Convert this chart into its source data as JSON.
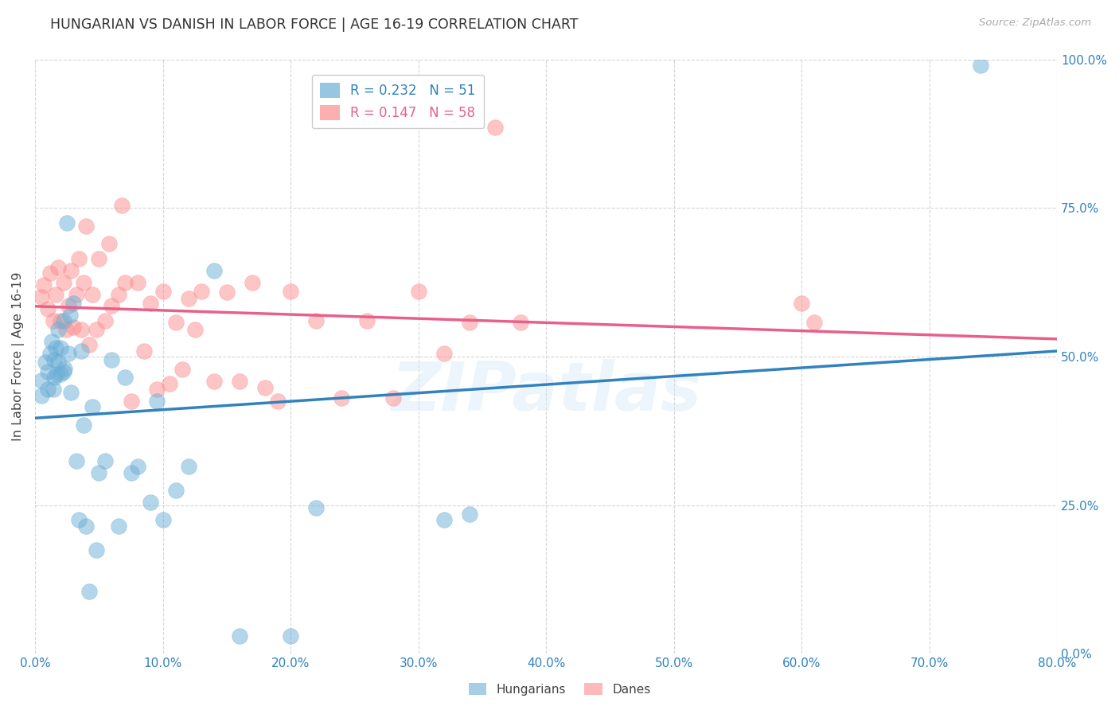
{
  "title": "HUNGARIAN VS DANISH IN LABOR FORCE | AGE 16-19 CORRELATION CHART",
  "source": "Source: ZipAtlas.com",
  "ylabel_text": "In Labor Force | Age 16-19",
  "xlim": [
    0.0,
    0.8
  ],
  "ylim": [
    0.0,
    1.0
  ],
  "watermark": "ZIPatlas",
  "blue_color": "#6baed6",
  "pink_color": "#fc8d8d",
  "blue_line_color": "#3182bd",
  "pink_line_color": "#e8608a",
  "hun_R": "0.232",
  "hun_N": "51",
  "dan_R": "0.147",
  "dan_N": "58",
  "hungarian_x": [
    0.005,
    0.005,
    0.008,
    0.01,
    0.01,
    0.012,
    0.013,
    0.014,
    0.015,
    0.015,
    0.016,
    0.017,
    0.018,
    0.018,
    0.02,
    0.02,
    0.022,
    0.022,
    0.023,
    0.025,
    0.026,
    0.027,
    0.028,
    0.03,
    0.032,
    0.034,
    0.036,
    0.038,
    0.04,
    0.042,
    0.045,
    0.048,
    0.05,
    0.055,
    0.06,
    0.065,
    0.07,
    0.075,
    0.08,
    0.09,
    0.095,
    0.1,
    0.11,
    0.12,
    0.14,
    0.16,
    0.2,
    0.22,
    0.32,
    0.34,
    0.74
  ],
  "hungarian_y": [
    0.435,
    0.46,
    0.49,
    0.445,
    0.475,
    0.505,
    0.525,
    0.445,
    0.465,
    0.495,
    0.515,
    0.47,
    0.49,
    0.545,
    0.47,
    0.515,
    0.475,
    0.56,
    0.48,
    0.725,
    0.505,
    0.57,
    0.44,
    0.59,
    0.325,
    0.225,
    0.51,
    0.385,
    0.215,
    0.105,
    0.415,
    0.175,
    0.305,
    0.325,
    0.495,
    0.215,
    0.465,
    0.305,
    0.315,
    0.255,
    0.425,
    0.225,
    0.275,
    0.315,
    0.645,
    0.03,
    0.03,
    0.245,
    0.225,
    0.235,
    0.99
  ],
  "danish_x": [
    0.005,
    0.007,
    0.01,
    0.012,
    0.014,
    0.016,
    0.018,
    0.02,
    0.022,
    0.024,
    0.026,
    0.028,
    0.03,
    0.032,
    0.034,
    0.036,
    0.038,
    0.04,
    0.042,
    0.045,
    0.048,
    0.05,
    0.055,
    0.058,
    0.06,
    0.065,
    0.068,
    0.07,
    0.075,
    0.08,
    0.085,
    0.09,
    0.095,
    0.1,
    0.105,
    0.11,
    0.115,
    0.12,
    0.125,
    0.13,
    0.14,
    0.15,
    0.16,
    0.17,
    0.18,
    0.19,
    0.2,
    0.22,
    0.24,
    0.26,
    0.28,
    0.3,
    0.32,
    0.34,
    0.36,
    0.38,
    0.6,
    0.61
  ],
  "danish_y": [
    0.6,
    0.62,
    0.58,
    0.64,
    0.56,
    0.605,
    0.65,
    0.56,
    0.625,
    0.545,
    0.585,
    0.645,
    0.55,
    0.605,
    0.665,
    0.545,
    0.625,
    0.72,
    0.52,
    0.605,
    0.545,
    0.665,
    0.56,
    0.69,
    0.585,
    0.605,
    0.755,
    0.625,
    0.425,
    0.625,
    0.51,
    0.59,
    0.445,
    0.61,
    0.455,
    0.558,
    0.478,
    0.598,
    0.545,
    0.61,
    0.458,
    0.608,
    0.458,
    0.625,
    0.448,
    0.425,
    0.61,
    0.56,
    0.43,
    0.56,
    0.43,
    0.61,
    0.505,
    0.558,
    0.885,
    0.558,
    0.59,
    0.558
  ]
}
